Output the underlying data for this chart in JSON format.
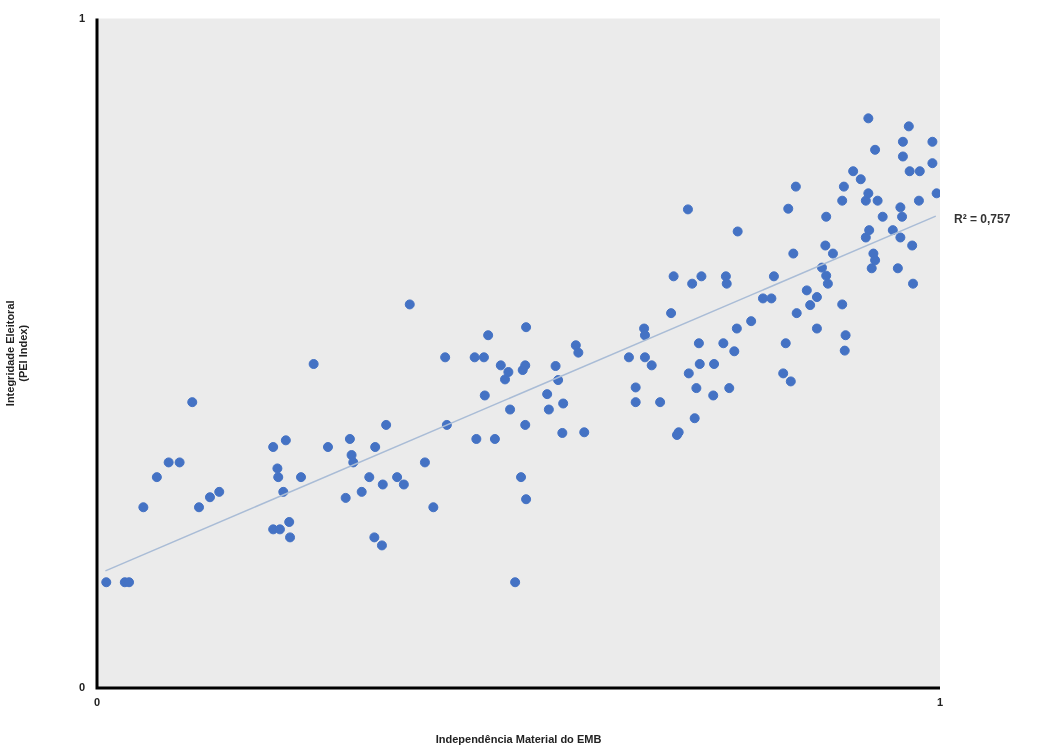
{
  "chart_data": {
    "type": "scatter",
    "xlabel": "Independência Material do EMB",
    "ylabel": "Integridade Eleitoral\n(PEI Index)",
    "xlim": [
      0,
      1
    ],
    "ylim": [
      0,
      1
    ],
    "xticks": [
      0,
      1
    ],
    "yticks": [
      0,
      1
    ],
    "grid": false,
    "legend": false,
    "marker": "circle",
    "annotations": [
      "R² = 0,757"
    ],
    "series": [
      {
        "color": "#4472c4",
        "x": [
          0.011,
          0.033,
          0.038,
          0.055,
          0.071,
          0.085,
          0.098,
          0.113,
          0.121,
          0.134,
          0.145,
          0.209,
          0.215,
          0.214,
          0.224,
          0.209,
          0.217,
          0.228,
          0.221,
          0.229,
          0.242,
          0.257,
          0.274,
          0.295,
          0.3,
          0.304,
          0.302,
          0.314,
          0.323,
          0.329,
          0.33,
          0.338,
          0.339,
          0.343,
          0.356,
          0.364,
          0.371,
          0.389,
          0.399,
          0.413,
          0.415,
          0.45,
          0.448,
          0.459,
          0.46,
          0.464,
          0.472,
          0.479,
          0.484,
          0.488,
          0.49,
          0.496,
          0.503,
          0.509,
          0.505,
          0.508,
          0.509,
          0.508,
          0.534,
          0.536,
          0.547,
          0.544,
          0.553,
          0.552,
          0.568,
          0.571,
          0.578,
          0.631,
          0.639,
          0.639,
          0.649,
          0.65,
          0.65,
          0.658,
          0.668,
          0.681,
          0.684,
          0.688,
          0.69,
          0.701,
          0.702,
          0.706,
          0.709,
          0.711,
          0.714,
          0.715,
          0.717,
          0.731,
          0.732,
          0.743,
          0.746,
          0.747,
          0.75,
          0.756,
          0.76,
          0.759,
          0.776,
          0.79,
          0.8,
          0.803,
          0.814,
          0.817,
          0.82,
          0.823,
          0.826,
          0.829,
          0.83,
          0.842,
          0.846,
          0.854,
          0.854,
          0.86,
          0.864,
          0.865,
          0.865,
          0.867,
          0.873,
          0.884,
          0.884,
          0.886,
          0.887,
          0.888,
          0.897,
          0.906,
          0.912,
          0.912,
          0.915,
          0.915,
          0.916,
          0.919,
          0.921,
          0.923,
          0.923,
          0.926,
          0.932,
          0.944,
          0.95,
          0.953,
          0.953,
          0.955,
          0.956,
          0.956,
          0.963,
          0.964,
          0.967,
          0.968,
          0.975,
          0.976,
          0.991,
          0.991,
          0.996
        ],
        "values": [
          0.158,
          0.158,
          0.158,
          0.27,
          0.315,
          0.337,
          0.337,
          0.427,
          0.27,
          0.285,
          0.293,
          0.36,
          0.315,
          0.328,
          0.37,
          0.237,
          0.237,
          0.248,
          0.293,
          0.225,
          0.315,
          0.484,
          0.36,
          0.284,
          0.372,
          0.337,
          0.348,
          0.293,
          0.315,
          0.225,
          0.36,
          0.213,
          0.304,
          0.393,
          0.315,
          0.304,
          0.573,
          0.337,
          0.27,
          0.494,
          0.393,
          0.372,
          0.494,
          0.494,
          0.437,
          0.527,
          0.372,
          0.482,
          0.461,
          0.472,
          0.416,
          0.158,
          0.315,
          0.282,
          0.475,
          0.482,
          0.539,
          0.393,
          0.439,
          0.416,
          0.46,
          0.481,
          0.425,
          0.381,
          0.512,
          0.501,
          0.382,
          0.494,
          0.449,
          0.427,
          0.537,
          0.527,
          0.494,
          0.482,
          0.427,
          0.56,
          0.615,
          0.378,
          0.382,
          0.715,
          0.47,
          0.604,
          0.403,
          0.448,
          0.515,
          0.484,
          0.615,
          0.437,
          0.484,
          0.515,
          0.615,
          0.604,
          0.448,
          0.503,
          0.682,
          0.537,
          0.548,
          0.582,
          0.582,
          0.615,
          0.47,
          0.515,
          0.716,
          0.458,
          0.649,
          0.749,
          0.56,
          0.594,
          0.572,
          0.584,
          0.537,
          0.628,
          0.661,
          0.704,
          0.616,
          0.604,
          0.649,
          0.728,
          0.573,
          0.749,
          0.504,
          0.527,
          0.772,
          0.76,
          0.728,
          0.673,
          0.851,
          0.739,
          0.684,
          0.627,
          0.649,
          0.804,
          0.639,
          0.728,
          0.704,
          0.684,
          0.627,
          0.718,
          0.673,
          0.704,
          0.816,
          0.794,
          0.839,
          0.772,
          0.661,
          0.604,
          0.728,
          0.772,
          0.816,
          0.784,
          0.739
        ]
      },
      {
        "type": "line",
        "color": "#a9bcd6",
        "marker": "none",
        "x": [
          0.01,
          0.995
        ],
        "values": [
          0.175,
          0.705
        ]
      }
    ]
  }
}
